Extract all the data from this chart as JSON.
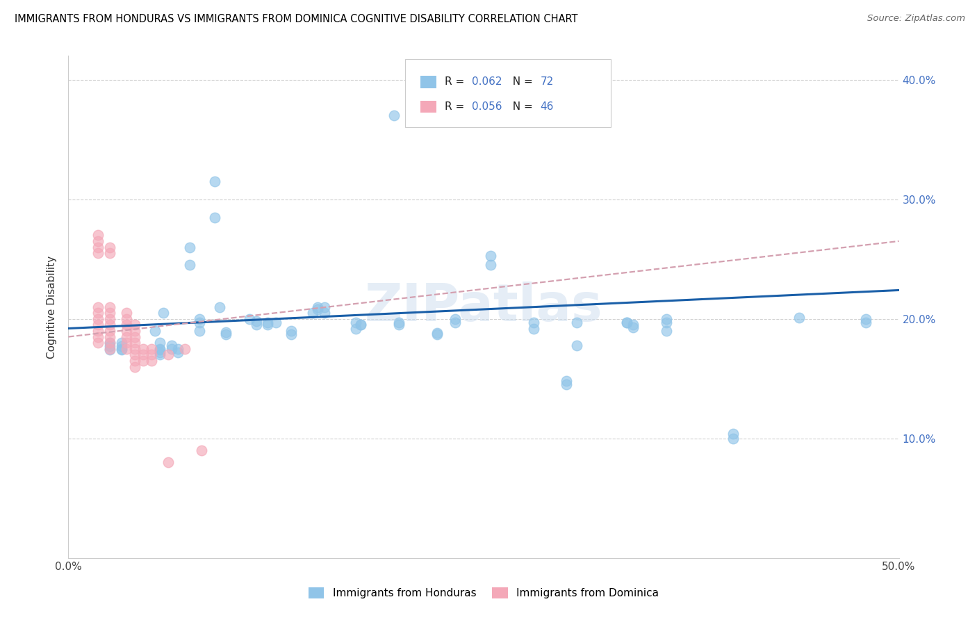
{
  "title": "IMMIGRANTS FROM HONDURAS VS IMMIGRANTS FROM DOMINICA COGNITIVE DISABILITY CORRELATION CHART",
  "source": "Source: ZipAtlas.com",
  "ylabel": "Cognitive Disability",
  "legend_label1": "Immigrants from Honduras",
  "legend_label2": "Immigrants from Dominica",
  "xlim": [
    0.0,
    0.5
  ],
  "ylim": [
    0.0,
    0.42
  ],
  "x_ticks": [
    0.0,
    0.1,
    0.2,
    0.3,
    0.4,
    0.5
  ],
  "y_ticks": [
    0.0,
    0.1,
    0.2,
    0.3,
    0.4
  ],
  "color_honduras": "#90c4e8",
  "color_dominica": "#f4a8b8",
  "color_trend_honduras": "#1a5fa8",
  "color_trend_dominica": "#d4a0b0",
  "R1": "0.062",
  "N1": "72",
  "R2": "0.056",
  "N2": "46",
  "honduras_x": [
    0.196,
    0.147,
    0.109,
    0.113,
    0.12,
    0.134,
    0.079,
    0.066,
    0.15,
    0.154,
    0.199,
    0.233,
    0.173,
    0.176,
    0.28,
    0.306,
    0.336,
    0.222,
    0.095,
    0.062,
    0.055,
    0.032,
    0.025,
    0.088,
    0.091,
    0.057,
    0.125,
    0.052,
    0.113,
    0.12,
    0.134,
    0.079,
    0.15,
    0.154,
    0.254,
    0.173,
    0.176,
    0.28,
    0.306,
    0.336,
    0.222,
    0.095,
    0.062,
    0.055,
    0.032,
    0.025,
    0.254,
    0.088,
    0.073,
    0.073,
    0.079,
    0.066,
    0.199,
    0.233,
    0.025,
    0.055,
    0.055,
    0.055,
    0.032,
    0.032,
    0.36,
    0.4,
    0.34,
    0.44,
    0.3,
    0.48,
    0.36,
    0.4,
    0.34,
    0.3,
    0.36,
    0.48
  ],
  "honduras_y": [
    0.37,
    0.205,
    0.2,
    0.195,
    0.195,
    0.19,
    0.19,
    0.175,
    0.21,
    0.21,
    0.195,
    0.2,
    0.192,
    0.195,
    0.192,
    0.178,
    0.197,
    0.188,
    0.189,
    0.178,
    0.174,
    0.177,
    0.177,
    0.315,
    0.21,
    0.205,
    0.197,
    0.19,
    0.198,
    0.197,
    0.187,
    0.197,
    0.208,
    0.205,
    0.245,
    0.197,
    0.195,
    0.197,
    0.197,
    0.197,
    0.187,
    0.187,
    0.175,
    0.172,
    0.174,
    0.174,
    0.253,
    0.285,
    0.245,
    0.26,
    0.2,
    0.172,
    0.197,
    0.197,
    0.18,
    0.175,
    0.17,
    0.18,
    0.18,
    0.175,
    0.197,
    0.104,
    0.193,
    0.201,
    0.148,
    0.197,
    0.2,
    0.1,
    0.195,
    0.145,
    0.19,
    0.2
  ],
  "dominica_x": [
    0.018,
    0.018,
    0.018,
    0.018,
    0.018,
    0.018,
    0.018,
    0.018,
    0.018,
    0.018,
    0.018,
    0.025,
    0.025,
    0.025,
    0.025,
    0.025,
    0.025,
    0.025,
    0.025,
    0.025,
    0.025,
    0.035,
    0.035,
    0.035,
    0.035,
    0.035,
    0.035,
    0.035,
    0.04,
    0.04,
    0.04,
    0.04,
    0.04,
    0.04,
    0.04,
    0.04,
    0.045,
    0.045,
    0.045,
    0.05,
    0.05,
    0.05,
    0.06,
    0.06,
    0.07,
    0.08
  ],
  "dominica_y": [
    0.27,
    0.265,
    0.26,
    0.255,
    0.21,
    0.205,
    0.2,
    0.195,
    0.19,
    0.185,
    0.18,
    0.26,
    0.255,
    0.21,
    0.205,
    0.2,
    0.195,
    0.19,
    0.185,
    0.18,
    0.175,
    0.205,
    0.2,
    0.195,
    0.19,
    0.185,
    0.18,
    0.175,
    0.195,
    0.19,
    0.185,
    0.18,
    0.175,
    0.17,
    0.165,
    0.16,
    0.175,
    0.17,
    0.165,
    0.175,
    0.17,
    0.165,
    0.17,
    0.08,
    0.175,
    0.09
  ],
  "trend_dominica_x0": 0.0,
  "trend_dominica_x1": 0.5,
  "trend_dominica_y0": 0.185,
  "trend_dominica_y1": 0.265,
  "trend_honduras_x0": 0.0,
  "trend_honduras_x1": 0.5,
  "trend_honduras_y0": 0.192,
  "trend_honduras_y1": 0.224
}
